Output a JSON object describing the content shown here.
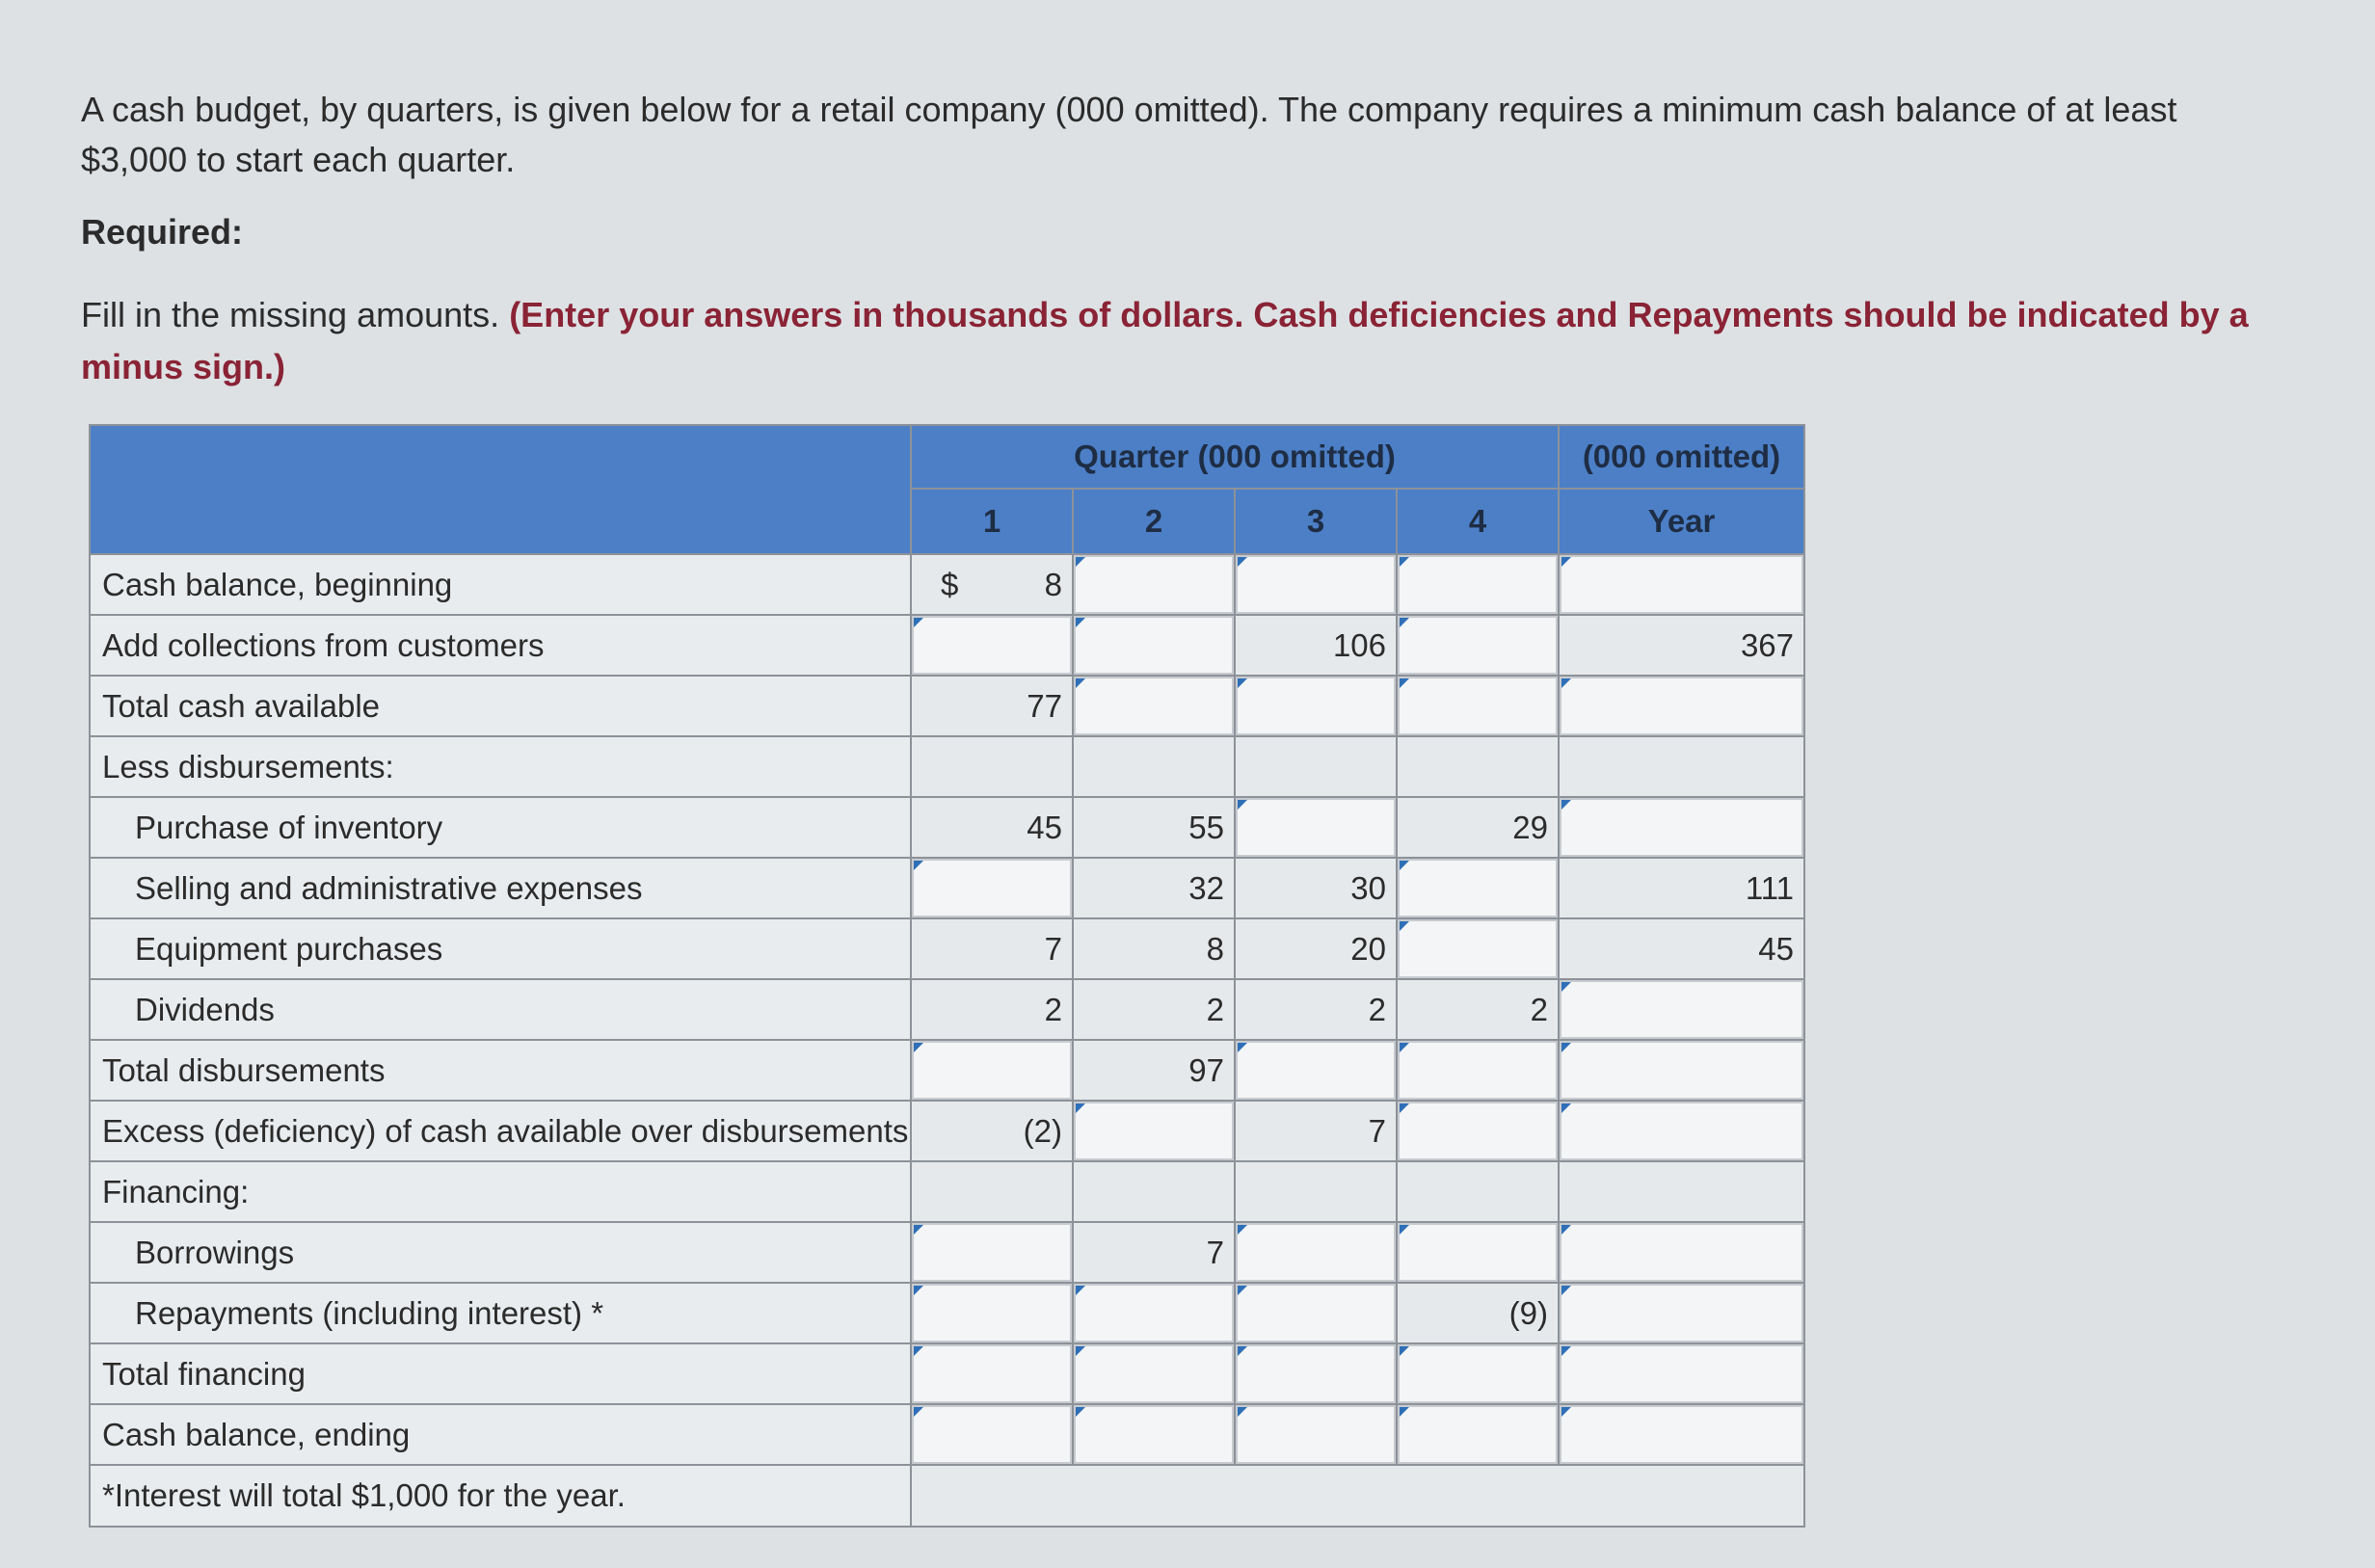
{
  "intro": "A cash budget, by quarters, is given below for a retail company (000 omitted). The company requires a minimum cash balance of at least $3,000 to start each quarter.",
  "required_label": "Required:",
  "instruction_plain": "Fill in the missing amounts.",
  "instruction_emph": "(Enter your answers in thousands of dollars. Cash deficiencies and Repayments should be indicated by a minus sign.)",
  "table": {
    "quarter_header": "Quarter (000 omitted)",
    "year_header": "(000 omitted)",
    "year_label": "Year",
    "quarters": [
      "1",
      "2",
      "3",
      "4"
    ],
    "currency_symbol": "$",
    "rows": [
      {
        "label": "Cash balance, beginning",
        "indent": false,
        "q1": "8",
        "q2": "",
        "q3": "",
        "q4": "",
        "year": "",
        "inputs": [
          false,
          true,
          true,
          true,
          true
        ]
      },
      {
        "label": "Add collections from customers",
        "indent": false,
        "q1": "",
        "q2": "",
        "q3": "106",
        "q4": "",
        "year": "367",
        "inputs": [
          true,
          true,
          false,
          true,
          false
        ]
      },
      {
        "label": "Total cash available",
        "indent": false,
        "q1": "77",
        "q2": "",
        "q3": "",
        "q4": "",
        "year": "",
        "inputs": [
          false,
          true,
          true,
          true,
          true
        ]
      },
      {
        "label": "Less disbursements:",
        "indent": false,
        "header": true
      },
      {
        "label": "Purchase of inventory",
        "indent": true,
        "q1": "45",
        "q2": "55",
        "q3": "",
        "q4": "29",
        "year": "",
        "inputs": [
          false,
          false,
          true,
          false,
          true
        ]
      },
      {
        "label": "Selling and administrative expenses",
        "indent": true,
        "q1": "",
        "q2": "32",
        "q3": "30",
        "q4": "",
        "year": "111",
        "inputs": [
          true,
          false,
          false,
          true,
          false
        ]
      },
      {
        "label": "Equipment purchases",
        "indent": true,
        "q1": "7",
        "q2": "8",
        "q3": "20",
        "q4": "",
        "year": "45",
        "inputs": [
          false,
          false,
          false,
          true,
          false
        ]
      },
      {
        "label": "Dividends",
        "indent": true,
        "q1": "2",
        "q2": "2",
        "q3": "2",
        "q4": "2",
        "year": "",
        "inputs": [
          false,
          false,
          false,
          false,
          true
        ]
      },
      {
        "label": "Total disbursements",
        "indent": false,
        "q1": "",
        "q2": "97",
        "q3": "",
        "q4": "",
        "year": "",
        "inputs": [
          true,
          false,
          true,
          true,
          true
        ]
      },
      {
        "label": "Excess (deficiency) of cash available over disbursements",
        "indent": false,
        "q1": "(2)",
        "q2": "",
        "q3": "7",
        "q4": "",
        "year": "",
        "inputs": [
          false,
          true,
          false,
          true,
          true
        ]
      },
      {
        "label": "Financing:",
        "indent": false,
        "header": true
      },
      {
        "label": "Borrowings",
        "indent": true,
        "q1": "",
        "q2": "7",
        "q3": "",
        "q4": "",
        "year": "",
        "inputs": [
          true,
          false,
          true,
          true,
          true
        ]
      },
      {
        "label": "Repayments (including interest) *",
        "indent": true,
        "q1": "",
        "q2": "",
        "q3": "",
        "q4": "(9)",
        "year": "",
        "inputs": [
          true,
          true,
          true,
          false,
          true
        ]
      },
      {
        "label": "Total financing",
        "indent": false,
        "q1": "",
        "q2": "",
        "q3": "",
        "q4": "",
        "year": "",
        "inputs": [
          true,
          true,
          true,
          true,
          true
        ]
      },
      {
        "label": "Cash balance, ending",
        "indent": false,
        "q1": "",
        "q2": "",
        "q3": "",
        "q4": "",
        "year": "",
        "inputs": [
          true,
          true,
          true,
          true,
          true
        ]
      }
    ],
    "footnote": "*Interest will total $1,000 for the year."
  }
}
